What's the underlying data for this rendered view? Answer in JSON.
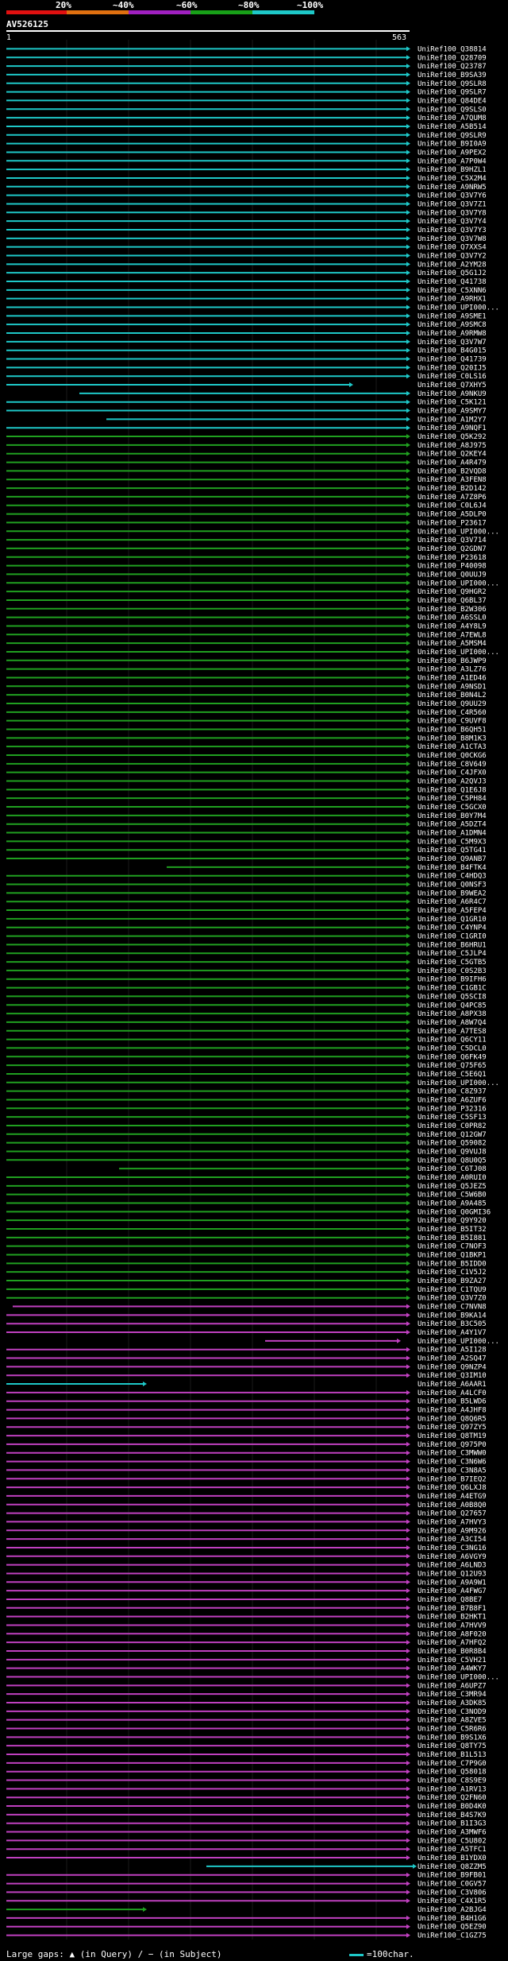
{
  "legend": {
    "labels": [
      "20%",
      "~40%",
      "~60%",
      "~80%",
      "~100%"
    ],
    "colors": [
      "#e01010",
      "#e07010",
      "#a020c0",
      "#18a018",
      "#1ec8c8"
    ]
  },
  "query": {
    "name": "AV526125",
    "start": "1",
    "end": "563"
  },
  "colors": {
    "cyan": "#1ec8c8",
    "green": "#20a020",
    "magenta": "#c040c0",
    "axis": "#555555"
  },
  "hits": [
    "UniRef100_Q38814",
    "UniRef100_Q28709",
    "UniRef100_Q23787",
    "UniRef100_B9SA39",
    "UniRef100_Q9SLR8",
    "UniRef100_Q9SLR7",
    "UniRef100_Q84DE4",
    "UniRef100_Q9SLS0",
    "UniRef100_A7QUM8",
    "UniRef100_A5B514",
    "UniRef100_Q9SLR9",
    "UniRef100_B9I0A9",
    "UniRef100_A9PEX2",
    "UniRef100_A7P0W4",
    "UniRef100_B9HZL1",
    "UniRef100_C5X2M4",
    "UniRef100_A9NRW5",
    "UniRef100_Q3V7Y6",
    "UniRef100_Q3V7Z1",
    "UniRef100_Q3V7Y8",
    "UniRef100_Q3V7Y4",
    "UniRef100_Q3V7Y3",
    "UniRef100_Q3V7W8",
    "UniRef100_Q7XXS4",
    "UniRef100_Q3V7Y2",
    "UniRef100_A2YM28",
    "UniRef100_Q5G1J2",
    "UniRef100_Q41738",
    "UniRef100_C5XNN6",
    "UniRef100_A9RHX1",
    "UniRef100_UPI000...",
    "UniRef100_A9SME1",
    "UniRef100_A9SMC8",
    "UniRef100_A9RMW8",
    "UniRef100_Q3V7W7",
    "UniRef100_B4G015",
    "UniRef100_Q41739",
    "UniRef100_Q20IJ5",
    "UniRef100_C0LS16",
    "UniRef100_Q7XHY5",
    "UniRef100_A9NKU9",
    "UniRef100_C5K121",
    "UniRef100_A9SMY7",
    "UniRef100_A1M2Y7",
    "UniRef100_A9NQF1",
    "UniRef100_Q5K292",
    "UniRef100_A8J975",
    "UniRef100_Q2KEY4",
    "UniRef100_A4R479",
    "UniRef100_B2VQD8",
    "UniRef100_A3FEN8",
    "UniRef100_B2D142",
    "UniRef100_A7Z8P6",
    "UniRef100_C0L6J4",
    "UniRef100_A5DLP0",
    "UniRef100_P23617",
    "UniRef100_UPI000...",
    "UniRef100_Q3V714",
    "UniRef100_Q2GDN7",
    "UniRef100_P23618",
    "UniRef100_P40098",
    "UniRef100_Q0UUJ9",
    "UniRef100_UPI000...",
    "UniRef100_Q9HGR2",
    "UniRef100_Q6BL37",
    "UniRef100_B2W306",
    "UniRef100_A6SSL0",
    "UniRef100_A4Y8L9",
    "UniRef100_A7EWL8",
    "UniRef100_A5MSM4",
    "UniRef100_UPI000...",
    "UniRef100_B6JWP9",
    "UniRef100_A3LZ76",
    "UniRef100_A1ED46",
    "UniRef100_A9NSD1",
    "UniRef100_B0N4L2",
    "UniRef100_Q9UU29",
    "UniRef100_C4R560",
    "UniRef100_C9UVF8",
    "UniRef100_B6QH51",
    "UniRef100_B8M1K3",
    "UniRef100_A1CTA3",
    "UniRef100_Q0CKG6",
    "UniRef100_C8V649",
    "UniRef100_C4JFX0",
    "UniRef100_A2QVJ3",
    "UniRef100_Q1E6J8",
    "UniRef100_C5PH84",
    "UniRef100_C5GCX0",
    "UniRef100_B0Y7M4",
    "UniRef100_A5DZT4",
    "UniRef100_A1DMN4",
    "UniRef100_C5M9X3",
    "UniRef100_Q5TG41",
    "UniRef100_Q9ANB7",
    "UniRef100_B4FTK4",
    "UniRef100_C4HDQ3",
    "UniRef100_Q0NSF3",
    "UniRef100_B9WEA2",
    "UniRef100_A6R4C7",
    "UniRef100_A5FEP4",
    "UniRef100_Q1GR10",
    "UniRef100_C4YNP4",
    "UniRef100_C1GRI0",
    "UniRef100_B6HRU1",
    "UniRef100_C5JLP4",
    "UniRef100_C5GTB5",
    "UniRef100_C0S2B3",
    "UniRef100_B9IFH6",
    "UniRef100_C1GB1C",
    "UniRef100_Q5SCI8",
    "UniRef100_Q4PC85",
    "UniRef100_A8PX38",
    "UniRef100_A8W7Q4",
    "UniRef100_A7TES8",
    "UniRef100_Q6CY11",
    "UniRef100_C5DCL0",
    "UniRef100_Q6FK49",
    "UniRef100_Q75F65",
    "UniRef100_C5E6Q1",
    "UniRef100_UPI000...",
    "UniRef100_C8Z937",
    "UniRef100_A6ZUF6",
    "UniRef100_P32316",
    "UniRef100_C5SF13",
    "UniRef100_C0PR82",
    "UniRef100_Q12GW7",
    "UniRef100_Q59082",
    "UniRef100_Q9VUJ8",
    "UniRef100_Q8U0Q5",
    "UniRef100_C6TJ08",
    "UniRef100_A0RUI0",
    "UniRef100_Q5JEZ5",
    "UniRef100_C5W6B0",
    "UniRef100_A9A485",
    "UniRef100_Q0GMI36",
    "UniRef100_Q9Y920",
    "UniRef100_B5IT32",
    "UniRef100_B5I881",
    "UniRef100_C7NOF3",
    "UniRef100_Q1BKP1",
    "UniRef100_B5IDD0",
    "UniRef100_C1V5J2",
    "UniRef100_B9ZA27",
    "UniRef100_C1TQU9",
    "UniRef100_Q3V7Z0",
    "UniRef100_C7NVN8",
    "UniRef100_B9KA14",
    "UniRef100_B3C505",
    "UniRef100_A4Y1V7",
    "UniRef100_UPI000...",
    "UniRef100_A5I128",
    "UniRef100_A2SQ47",
    "UniRef100_Q9NZP4",
    "UniRef100_Q3IM10",
    "UniRef100_A6AAR1",
    "UniRef100_A4LCF0",
    "UniRef100_B5LWD6",
    "UniRef100_A4JHF8",
    "UniRef100_Q8Q6R5",
    "UniRef100_Q97ZY5",
    "UniRef100_Q8TM19",
    "UniRef100_Q975P0",
    "UniRef100_C3MWW0",
    "UniRef100_C3N6W6",
    "UniRef100_C3N8A5",
    "UniRef100_B7IEQ2",
    "UniRef100_Q6LXJ8",
    "UniRef100_A4ETG9",
    "UniRef100_A0B8Q0",
    "UniRef100_Q27657",
    "UniRef100_A7HVY3",
    "UniRef100_A9M926",
    "UniRef100_A3CI54",
    "UniRef100_C3NG16",
    "UniRef100_A6VGY9",
    "UniRef100_A6LND3",
    "UniRef100_Q12U93",
    "UniRef100_A9A9W1",
    "UniRef100_A4FWG7",
    "UniRef100_Q8BE7",
    "UniRef100_B7B8F1",
    "UniRef100_B2HKT1",
    "UniRef100_A7HVV9",
    "UniRef100_A8F020",
    "UniRef100_A7HFQ2",
    "UniRef100_B0R8B4",
    "UniRef100_C5VH21",
    "UniRef100_A4WKY7",
    "UniRef100_UPI000...",
    "UniRef100_A6UPZ7",
    "UniRef100_C3MR94",
    "UniRef100_A3DK85",
    "UniRef100_C3NOD9",
    "UniRef100_A8ZVE5",
    "UniRef100_C5R6R6",
    "UniRef100_B9S1X6",
    "UniRef100_Q8TY75",
    "UniRef100_B1L513",
    "UniRef100_C7P9G0",
    "UniRef100_Q58018",
    "UniRef100_C8S9E9",
    "UniRef100_A1RV13",
    "UniRef100_Q2FN60",
    "UniRef100_B0D4K0",
    "UniRef100_B4S7K9",
    "UniRef100_B1I3G3",
    "UniRef100_A3MWF6",
    "UniRef100_C5U802",
    "UniRef100_A5TFC1",
    "UniRef100_B1YDX0",
    "UniRef100_Q8ZZM5",
    "UniRef100_B9FB01",
    "UniRef100_C0GV57",
    "UniRef100_C3V806",
    "UniRef100_C4X1R5",
    "UniRef100_A2BJG4",
    "UniRef100_B4H1G6",
    "UniRef100_Q5EZ90",
    "UniRef100_C1GZ75"
  ],
  "footer": {
    "text": "Large gaps: ▲ (in Query) / − (in Subject)",
    "scale_label": "=100char."
  }
}
